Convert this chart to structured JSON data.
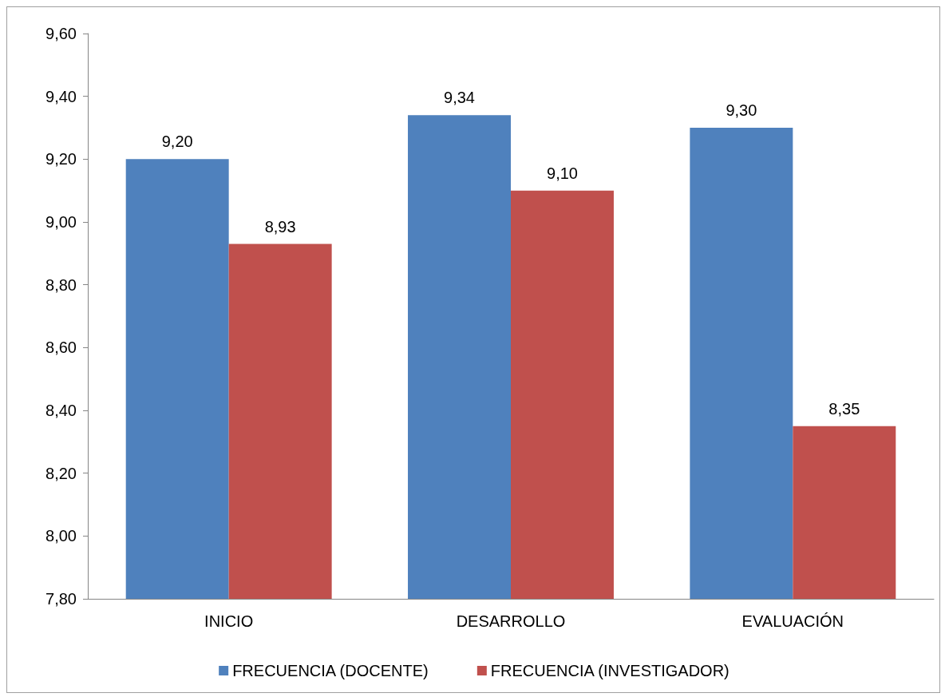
{
  "chart_data": {
    "type": "bar",
    "categories": [
      "INICIO",
      "DESARROLLO",
      "EVALUACIÓN"
    ],
    "series": [
      {
        "name": "FRECUENCIA (DOCENTE)",
        "color": "#4f81bd",
        "values": [
          9.2,
          9.34,
          9.3
        ],
        "value_labels": [
          "9,20",
          "9,34",
          "9,30"
        ]
      },
      {
        "name": "FRECUENCIA (INVESTIGADOR)",
        "color": "#c0504d",
        "values": [
          8.93,
          9.1,
          8.35
        ],
        "value_labels": [
          "8,93",
          "9,10",
          "8,35"
        ]
      }
    ],
    "ylim": [
      7.8,
      9.6
    ],
    "yticks": [
      {
        "value": 7.8,
        "label": "7,80"
      },
      {
        "value": 8.0,
        "label": "8,00"
      },
      {
        "value": 8.2,
        "label": "8,20"
      },
      {
        "value": 8.4,
        "label": "8,40"
      },
      {
        "value": 8.6,
        "label": "8,60"
      },
      {
        "value": 8.8,
        "label": "8,80"
      },
      {
        "value": 9.0,
        "label": "9,00"
      },
      {
        "value": 9.2,
        "label": "9,20"
      },
      {
        "value": 9.4,
        "label": "9,40"
      },
      {
        "value": 9.6,
        "label": "9,60"
      }
    ],
    "grid": false,
    "legend": "bottom"
  }
}
